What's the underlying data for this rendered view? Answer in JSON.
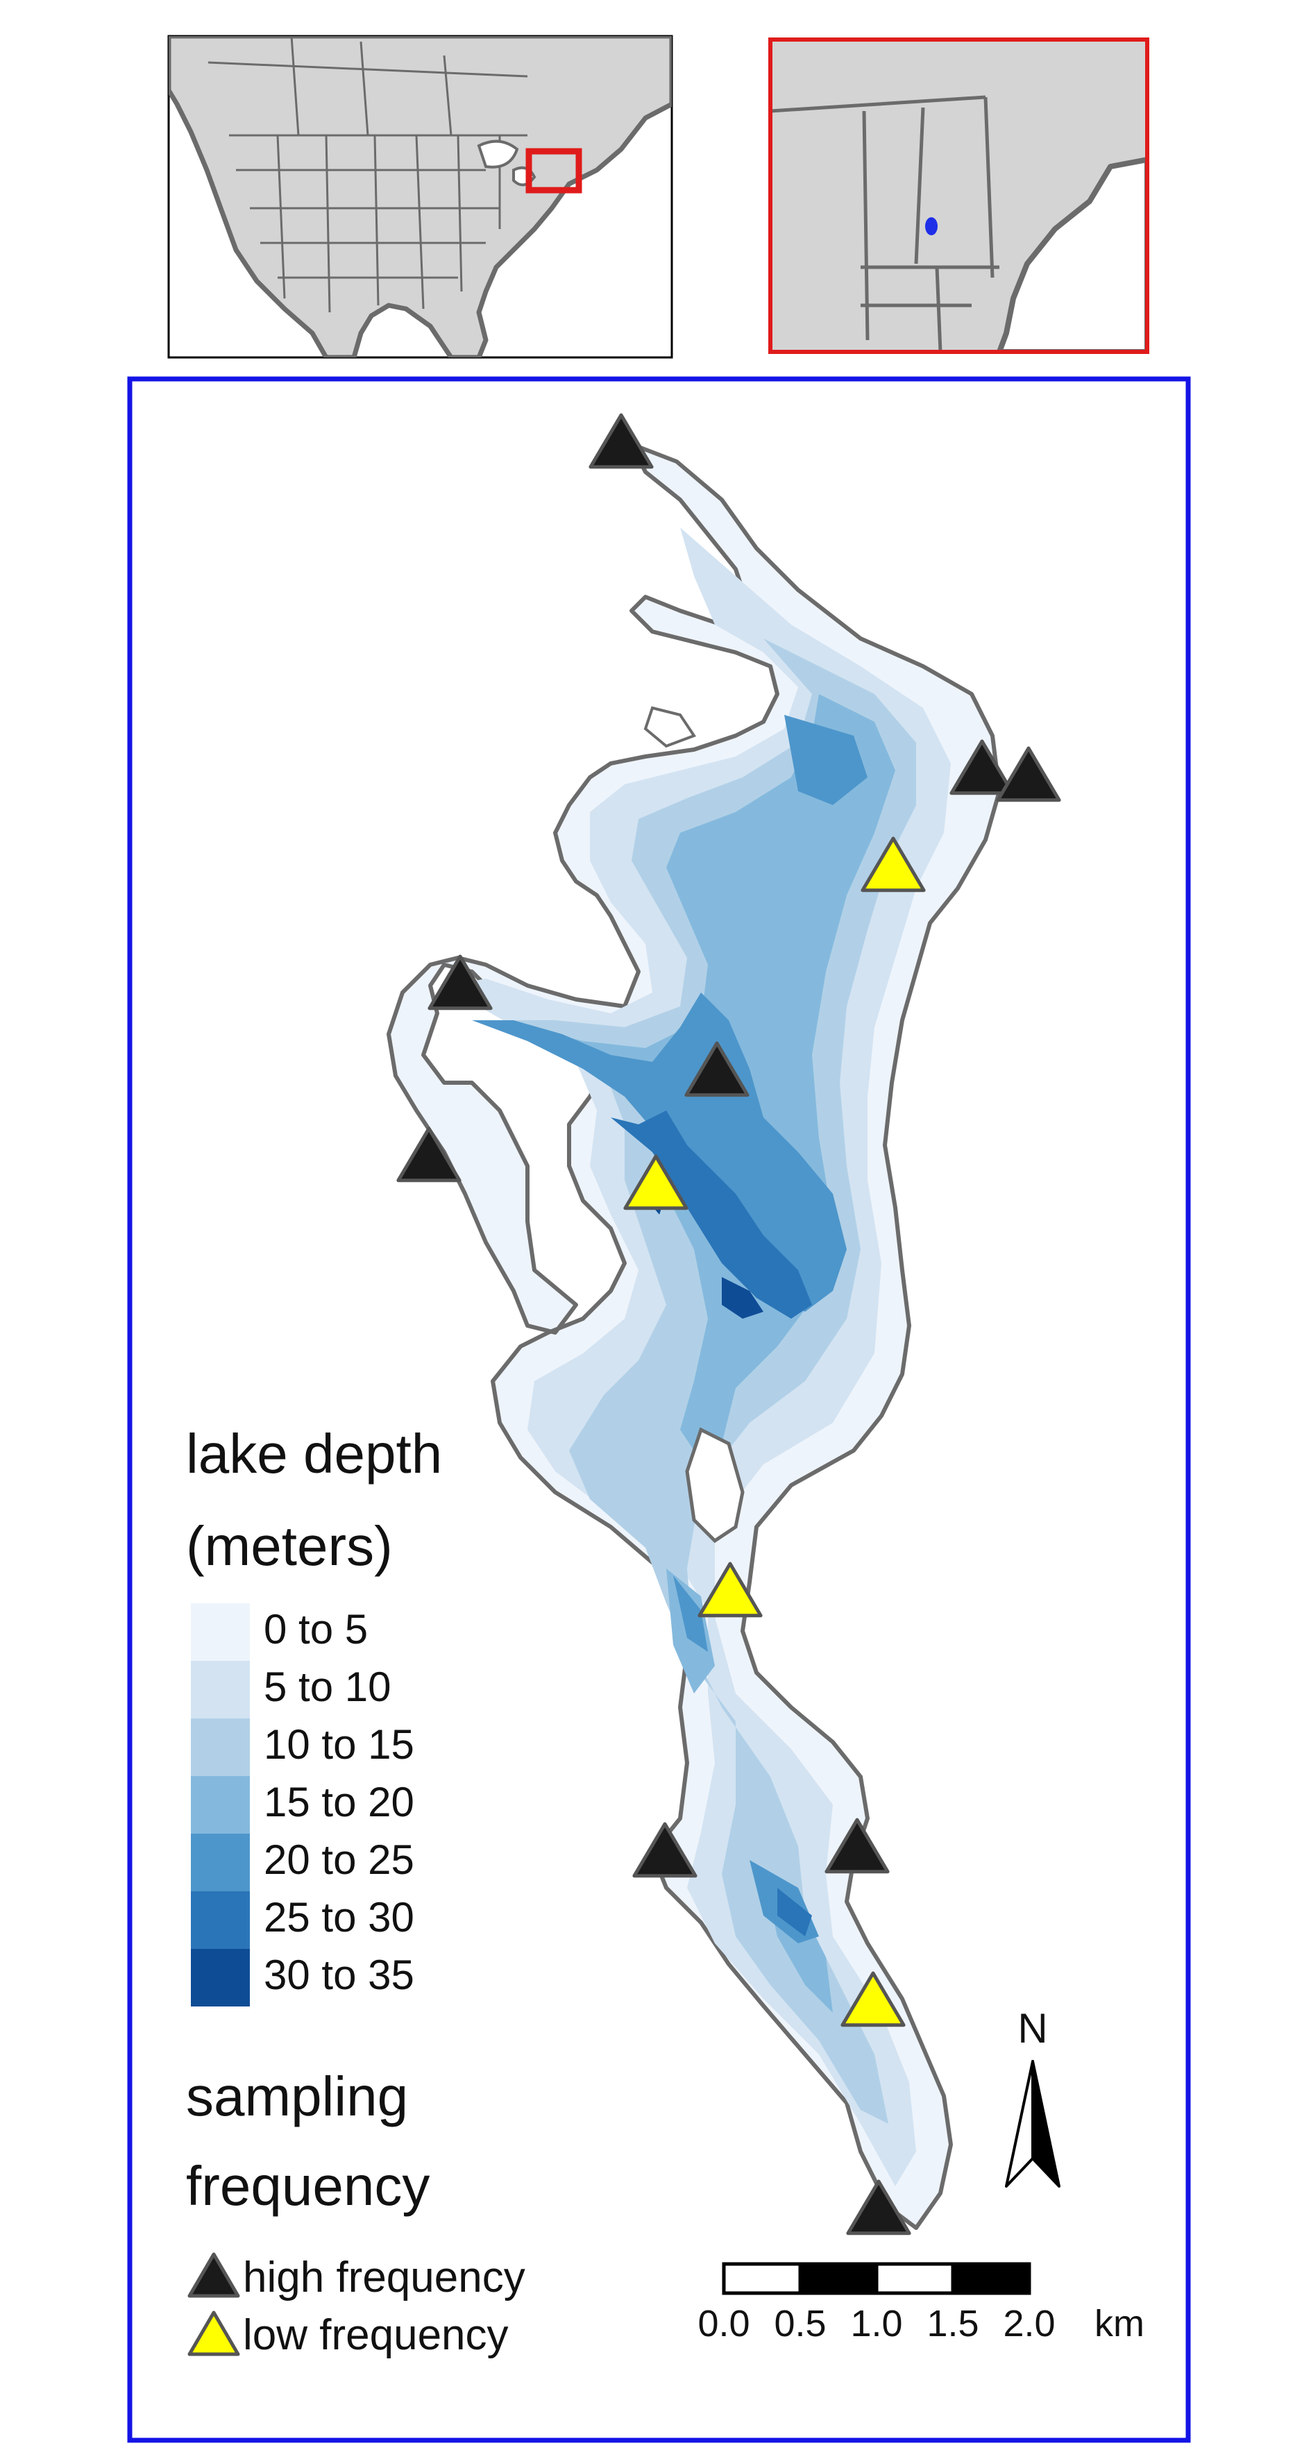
{
  "legend": {
    "depth_title_line1": "lake depth",
    "depth_title_line2": "(meters)",
    "depth_classes": [
      {
        "label": "0 to 5",
        "color": "#eef4fb"
      },
      {
        "label": "5 to 10",
        "color": "#d3e3f2"
      },
      {
        "label": "10 to 15",
        "color": "#b1d0e7"
      },
      {
        "label": "15 to 20",
        "color": "#84b9dd"
      },
      {
        "label": "20 to 25",
        "color": "#4d96cb"
      },
      {
        "label": "25 to 30",
        "color": "#2a75b8"
      },
      {
        "label": "30 to 35",
        "color": "#0e4c96"
      }
    ],
    "sampling_title_line1": "sampling",
    "sampling_title_line2": "frequency",
    "high_label": "high frequency",
    "low_label": "low frequency",
    "high_color": "#1a1a1a",
    "low_color": "#ffff00"
  },
  "north_arrow": {
    "label": "N"
  },
  "scale_bar": {
    "ticks": [
      "0.0",
      "0.5",
      "1.0",
      "1.5",
      "2.0"
    ],
    "unit": "km"
  },
  "colors": {
    "main_frame": "#1414e6",
    "inset_frame": "#e01b1b",
    "land": "#d4d4d4",
    "boundary": "#6b6b6b",
    "site_dot": "#1f2fe8"
  }
}
